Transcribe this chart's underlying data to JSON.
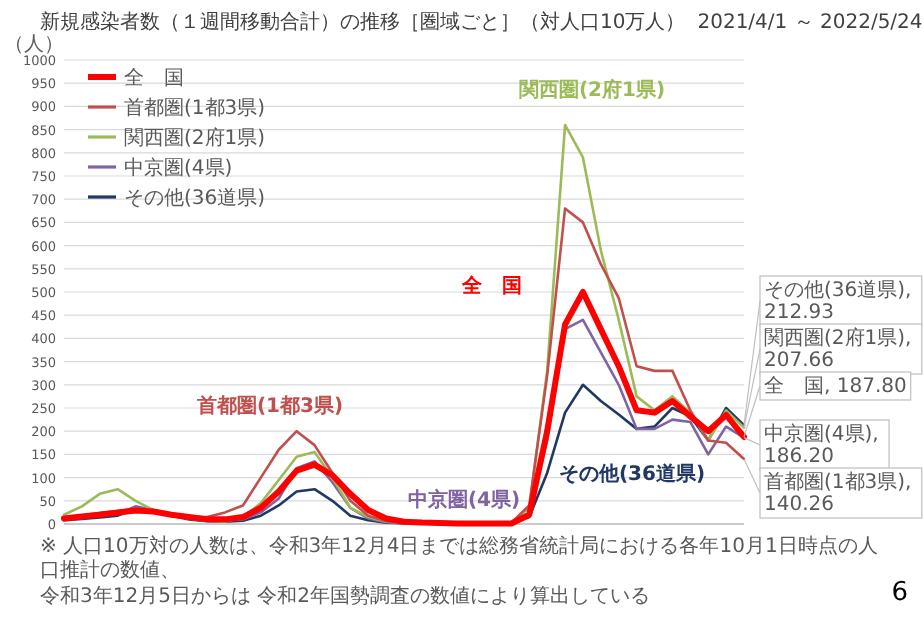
{
  "chart_data": {
    "type": "line",
    "title": "新規感染者数（１週間移動合計）の推移［圏域ごと］（対人口10万人）",
    "subtitle": "2021/4/1 ～ 2022/5/24",
    "ylabel": "（人）",
    "categories": [
      null,
      null,
      null,
      null,
      null,
      null,
      null,
      null,
      null,
      null,
      null,
      null,
      null,
      null,
      null,
      null,
      null,
      null,
      null,
      null,
      null,
      null,
      null,
      null,
      null,
      null,
      null,
      null,
      null,
      null,
      null,
      null,
      null,
      null,
      null,
      null,
      null,
      null,
      null
    ],
    "ylim": [
      0,
      1000
    ],
    "yticks": [
      0,
      50,
      100,
      150,
      200,
      250,
      300,
      350,
      400,
      450,
      500,
      550,
      600,
      650,
      700,
      750,
      800,
      850,
      900,
      950,
      1000
    ],
    "series": [
      {
        "name": "全　国",
        "color": "#ff0000",
        "values": [
          12,
          16,
          20,
          25,
          29,
          27,
          20,
          15,
          10,
          10,
          15,
          35,
          70,
          115,
          128,
          105,
          65,
          30,
          12,
          5,
          3,
          2,
          1,
          1,
          1,
          1,
          20,
          200,
          430,
          500,
          420,
          340,
          245,
          240,
          265,
          232,
          200,
          235,
          187.8
        ]
      },
      {
        "name": "首都圏(1都3県)",
        "color": "#c0504d",
        "values": [
          12,
          18,
          24,
          28,
          33,
          28,
          22,
          16,
          15,
          25,
          40,
          100,
          160,
          200,
          170,
          110,
          50,
          18,
          6,
          3,
          2,
          2,
          2,
          2,
          2,
          3,
          40,
          320,
          680,
          650,
          560,
          487,
          340,
          330,
          330,
          245,
          180,
          175,
          140.26
        ]
      },
      {
        "name": "関西圏(2府1県)",
        "color": "#9bbb59",
        "values": [
          20,
          38,
          65,
          75,
          50,
          30,
          20,
          12,
          7,
          5,
          15,
          45,
          95,
          145,
          155,
          100,
          35,
          15,
          5,
          3,
          2,
          2,
          1,
          1,
          1,
          2,
          35,
          330,
          860,
          790,
          590,
          440,
          275,
          245,
          275,
          240,
          180,
          245,
          207.66
        ]
      },
      {
        "name": "中京圏(4県)",
        "color": "#8064a2",
        "values": [
          10,
          13,
          18,
          22,
          38,
          30,
          20,
          12,
          9,
          8,
          10,
          25,
          55,
          120,
          135,
          90,
          35,
          12,
          4,
          2,
          1,
          1,
          1,
          1,
          1,
          1,
          20,
          180,
          420,
          440,
          370,
          300,
          205,
          205,
          225,
          220,
          150,
          210,
          186.2
        ]
      },
      {
        "name": "その他(36道県)",
        "color": "#1f3864",
        "values": [
          8,
          11,
          14,
          18,
          32,
          27,
          18,
          10,
          6,
          5,
          7,
          18,
          40,
          70,
          75,
          50,
          18,
          8,
          3,
          2,
          1,
          1,
          1,
          1,
          1,
          1,
          15,
          110,
          240,
          300,
          265,
          236,
          205,
          210,
          250,
          232,
          180,
          250,
          212.93
        ]
      }
    ],
    "annotations": [
      "全　国",
      "首都圏(1都3県)",
      "関西圏(2府1県)",
      "中京圏(4県)",
      "その他(36道県)",
      "その他(36道県), 212.93",
      "関西圏(2府1県), 207.66",
      "全　国, 187.80",
      "中京圏(4県), 186.20",
      "首都圏(1都3県), 140.26",
      "※ 人口10万対の人数は、令和3年12月4日までは総務省統計局における各年10月1日時点の人口推計の数値、",
      "令和3年12月5日からは 令和2年国勢調査の数値により算出している",
      "6"
    ],
    "grid": "y",
    "legend": "top left",
    "tick_labels": "y",
    "marker": "none",
    "line_style": "solid"
  }
}
